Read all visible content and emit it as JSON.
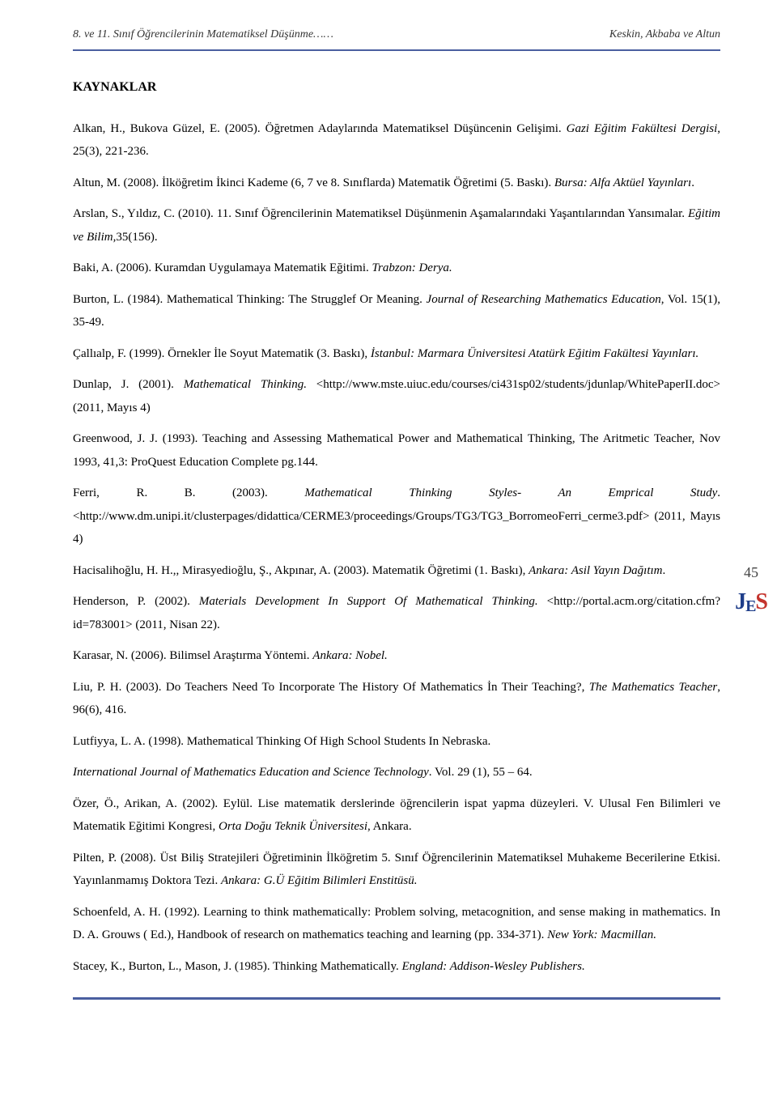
{
  "header": {
    "left": "8. ve 11. Sınıf Öğrencilerinin Matematiksel Düşünme……",
    "right": "Keskin, Akbaba ve Altun"
  },
  "section_title": "KAYNAKLAR",
  "page_number": "45",
  "logo": {
    "j": "J",
    "e": "E",
    "s": "S"
  },
  "refs": [
    {
      "plain1": "Alkan, H., Bukova Güzel, E. (2005). Öğretmen Adaylarında Matematiksel Düşüncenin Gelişimi. ",
      "it1": "Gazi Eğitim Fakültesi Dergisi",
      "plain2": ", 25(3), 221-236."
    },
    {
      "plain1": "Altun, M. (2008). İlköğretim İkinci Kademe (6, 7 ve 8. Sınıflarda) Matematik Öğretimi (5. Baskı). ",
      "it1": "Bursa: Alfa Aktüel Yayınları",
      "plain2": "."
    },
    {
      "plain1": "Arslan, S., Yıldız, C. (2010). 11. Sınıf Öğrencilerinin Matematiksel Düşünmenin Aşamalarındaki Yaşantılarından Yansımalar. ",
      "it1": "Eğitim ve Bilim,",
      "plain2": "35(156)."
    },
    {
      "plain1": "Baki, A. (2006). Kuramdan Uygulamaya Matematik Eğitimi. ",
      "it1": "Trabzon: Derya.",
      "plain2": ""
    },
    {
      "plain1": "Burton, L. (1984). Mathematical Thinking: The Strugglef Or Meaning. ",
      "it1": "Journal of Researching Mathematics Education",
      "plain2": ", Vol. 15(1), 35-49."
    },
    {
      "plain1": "Çallıalp, F. (1999). Örnekler İle Soyut Matematik (3. Baskı), ",
      "it1": "İstanbul: Marmara Üniversitesi Atatürk Eğitim Fakültesi Yayınları.",
      "plain2": ""
    },
    {
      "plain1": "Dunlap, J. (2001). ",
      "it1": "Mathematical Thinking.",
      "plain2": " <http://www.mste.uiuc.edu/courses/ci431sp02/students/jdunlap/WhitePaperII.doc> (2011, Mayıs 4)"
    },
    {
      "plain1": "Greenwood, J. J. (1993). Teaching and Assessing Mathematical Power and Mathematical Thinking, The Aritmetic Teacher, Nov 1993, 41,3: ProQuest Education Complete pg.144.",
      "it1": "",
      "plain2": ""
    },
    {
      "plain1": "Ferri, R. B. (2003). ",
      "it1": "Mathematical Thinking Styles- An Emprical Study",
      "plain2": ". <http://www.dm.unipi.it/clusterpages/didattica/CERME3/proceedings/Groups/TG3/TG3_BorromeoFerri_cerme3.pdf> (2011, Mayıs 4)"
    },
    {
      "plain1": "Hacisalihoğlu, H. H.,, Mirasyedioğlu, Ş., Akpınar, A. (2003). Matematik Öğretimi (1. Baskı), ",
      "it1": "Ankara: Asil Yayın Dağıtım",
      "plain2": "."
    },
    {
      "plain1": "Henderson, P. (2002). ",
      "it1": "Materials Development In Support Of Mathematical Thinking.",
      "plain2": " <http://portal.acm.org/citation.cfm?id=783001> (2011, Nisan 22)."
    },
    {
      "plain1": "Karasar, N. (2006). Bilimsel Araştırma Yöntemi. ",
      "it1": "Ankara: Nobel.",
      "plain2": ""
    },
    {
      "plain1": "Liu, P. H. (2003). Do Teachers Need To Incorporate The History Of Mathematics İn Their Teaching?, ",
      "it1": "The Mathematics Teacher",
      "plain2": ", 96(6), 416."
    },
    {
      "plain1": "Lutfiyya, L. A. (1998). Mathematical Thinking Of High School Students In Nebraska.",
      "it1": "",
      "plain2": ""
    },
    {
      "plain1": "",
      "it1": "International Journal of Mathematics Education and Science Technology",
      "plain2": ". Vol. 29 (1), 55 – 64."
    },
    {
      "plain1": "Özer, Ö., Arikan, A. (2002). Eylül. Lise matematik derslerinde öğrencilerin ispat yapma düzeyleri. V. Ulusal Fen Bilimleri ve Matematik Eğitimi Kongresi, ",
      "it1": "Orta Doğu Teknik Üniversitesi",
      "plain2": ", Ankara."
    },
    {
      "plain1": "Pilten, P. (2008). Üst Biliş Stratejileri Öğretiminin İlköğretim 5. Sınıf Öğrencilerinin Matematiksel Muhakeme Becerilerine Etkisi. Yayınlanmamış Doktora Tezi. ",
      "it1": "Ankara: G.Ü Eğitim Bilimleri Enstitüsü.",
      "plain2": ""
    },
    {
      "plain1": "Schoenfeld, A. H. (1992). Learning to think mathematically: Problem solving, metacognition, and sense making in mathematics. In D. A. Grouws ( Ed.), Handbook of research on mathematics teaching and learning (pp. 334-371). ",
      "it1": "New York: Macmillan.",
      "plain2": ""
    },
    {
      "plain1": "Stacey, K., Burton, L., Mason, J. (1985). Thinking Mathematically. ",
      "it1": "England: Addison-Wesley Publishers.",
      "plain2": ""
    }
  ]
}
